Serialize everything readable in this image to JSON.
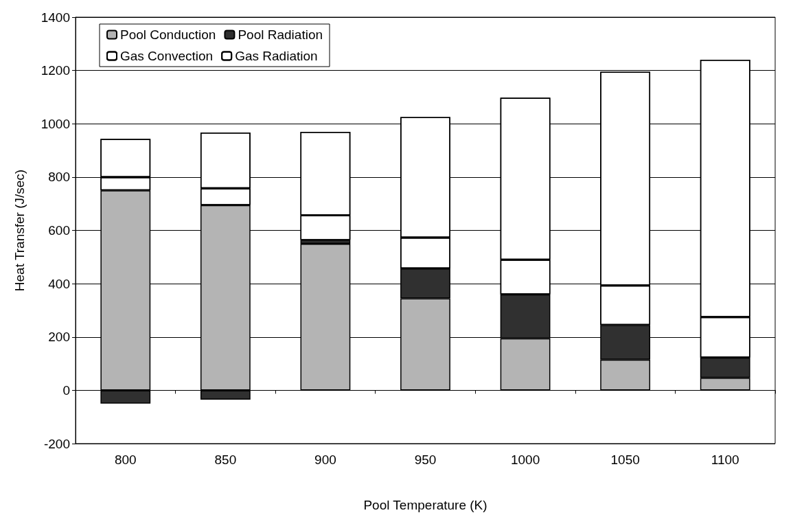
{
  "chart_data": {
    "type": "bar",
    "xlabel": "Pool Temperature (K)",
    "ylabel": "Heat Transfer (J/sec)",
    "categories": [
      "800",
      "850",
      "900",
      "950",
      "1000",
      "1050",
      "1100"
    ],
    "stacked": true,
    "series": [
      {
        "name": "Pool Conduction",
        "color": "#b4b4b4",
        "values": [
          750,
          695,
          550,
          345,
          195,
          115,
          47
        ]
      },
      {
        "name": "Pool Radiation",
        "color": "#303030",
        "values": [
          -50,
          -35,
          14,
          112,
          165,
          130,
          76
        ]
      },
      {
        "name": "Gas Convection",
        "color": "#ffffff",
        "values": [
          50,
          63,
          93,
          116,
          130,
          148,
          152
        ]
      },
      {
        "name": "Gas Radiation",
        "color": "#ffffff",
        "values": [
          143,
          209,
          313,
          452,
          608,
          802,
          965
        ]
      }
    ],
    "ylim": [
      -200,
      1400
    ],
    "yticks": [
      -200,
      0,
      200,
      400,
      600,
      800,
      1000,
      1200,
      1400
    ],
    "grid": "y",
    "legend": "top left"
  }
}
